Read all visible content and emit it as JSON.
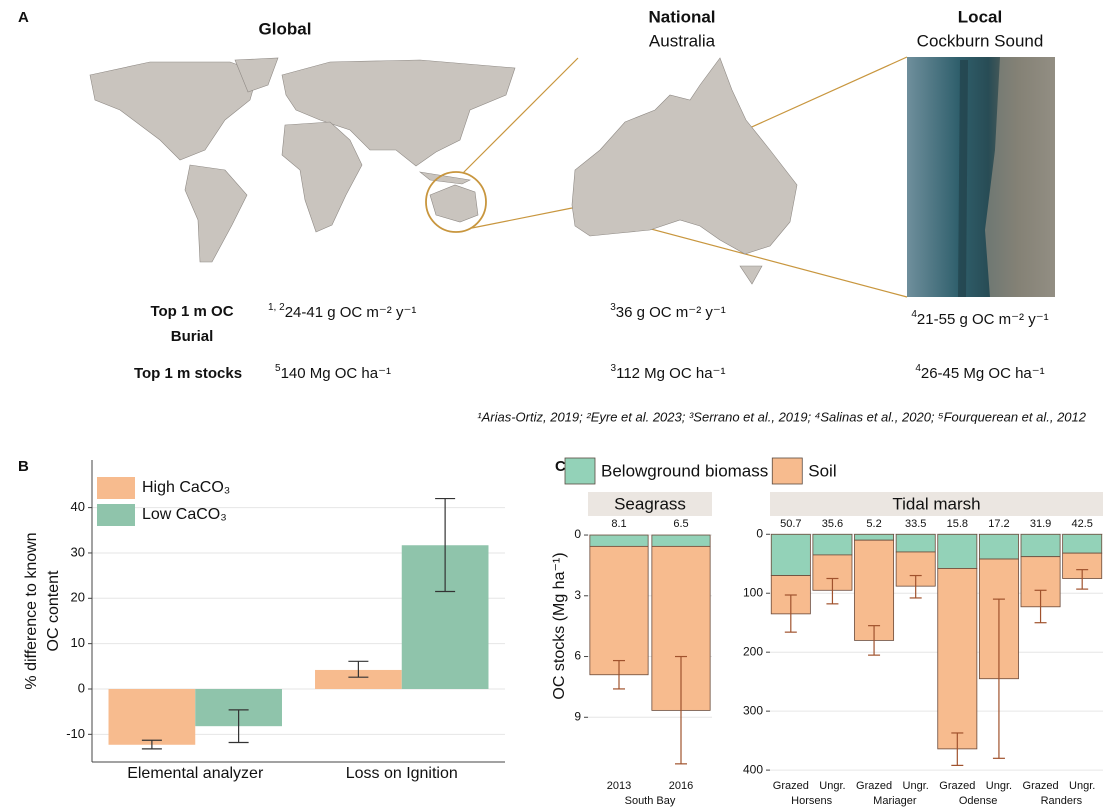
{
  "panel_a": {
    "label": "A",
    "scales": [
      {
        "title": "Global"
      },
      {
        "title": "National",
        "subtitle": "Australia"
      },
      {
        "title": "Local",
        "subtitle": "Cockburn Sound"
      }
    ],
    "rows": [
      {
        "label": [
          "Top 1 m OC",
          "Burial"
        ],
        "cells": [
          {
            "ref": "1, 2",
            "text": "24-41 g OC  m⁻² y⁻¹"
          },
          {
            "ref": "3",
            "text": "36 g OC  m⁻² y⁻¹"
          },
          {
            "ref": "4",
            "text": "21-55 g OC  m⁻² y⁻¹"
          }
        ]
      },
      {
        "label": [
          "Top 1 m stocks"
        ],
        "cells": [
          {
            "ref": "5",
            "text": "140 Mg OC  ha⁻¹"
          },
          {
            "ref": "3",
            "text": "112 Mg OC  ha⁻¹"
          },
          {
            "ref": "4",
            "text": "26-45 Mg OC  ha⁻¹"
          }
        ]
      }
    ],
    "references": "¹Arias-Ortiz, 2019; ²Eyre et al. 2023; ³Serrano et al., 2019; ⁴Salinas et al., 2020; ⁵Fourquerean et al., 2012"
  },
  "chart_data": [
    {
      "type": "grouped_bar",
      "panel_label": "B",
      "ylabel": [
        "% difference to known",
        "OC content"
      ],
      "categories": [
        "Elemental analyzer",
        "Loss on Ignition"
      ],
      "series": [
        {
          "name": "High CaCO₃",
          "color": "#f7bb8e",
          "values": [
            -12.3,
            4.2
          ],
          "errors": [
            [
              -13.2,
              -11.3
            ],
            [
              2.6,
              6.1
            ]
          ]
        },
        {
          "name": "Low CaCO₃",
          "color": "#8fc4ab",
          "values": [
            -8.2,
            31.7
          ],
          "errors": [
            [
              -11.8,
              -4.6
            ],
            [
              21.5,
              42
            ]
          ]
        }
      ],
      "ylim": [
        -16.1,
        50.5
      ],
      "yticks": [
        -10,
        0,
        10,
        20,
        30,
        40
      ],
      "grid": true,
      "legend": "top-left"
    },
    {
      "type": "faceted_stacked_bar",
      "panel_label": "C",
      "ylabel": "OC stocks (Mg ha⁻¹)",
      "legend": [
        {
          "name": "Belowground biomass",
          "color": "#93d2b8"
        },
        {
          "name": "Soil",
          "color": "#f7bb8e"
        }
      ],
      "facets": [
        {
          "title": "Seagrass",
          "categories": [
            "2013",
            "2016"
          ],
          "sites": [
            "South Bay"
          ],
          "annotations": [
            8.1,
            6.5
          ],
          "annotation_color": "#2e6e55",
          "series": [
            {
              "values": [
                0.56,
                0.56
              ]
            },
            {
              "values": [
                6.34,
                8.1
              ]
            }
          ],
          "errors": [
            [
              6.2,
              7.6
            ],
            [
              6.0,
              11.3
            ]
          ],
          "ylim": [
            -0.94,
            11.9
          ],
          "yticks": [
            0,
            3,
            6,
            9
          ]
        },
        {
          "title": "Tidal marsh",
          "categories": [
            "Grazed",
            "Ungr.",
            "Grazed",
            "Ungr.",
            "Grazed",
            "Ungr.",
            "Grazed",
            "Ungr."
          ],
          "sites": [
            "Horsens",
            "Mariager",
            "Odense",
            "Randers"
          ],
          "annotations": [
            50.7,
            35.6,
            5.2,
            33.5,
            15.8,
            17.2,
            31.9,
            42.5
          ],
          "annotation_color": "#111111",
          "series": [
            {
              "values": [
                70,
                35,
                10,
                30,
                58,
                42,
                38,
                32
              ]
            },
            {
              "values": [
                65,
                60,
                170,
                58,
                306,
                203,
                85,
                43
              ]
            }
          ],
          "errors": [
            [
              103,
              166
            ],
            [
              75,
              118
            ],
            [
              155,
              205
            ],
            [
              70,
              108
            ],
            [
              337,
              392
            ],
            [
              110,
              380
            ],
            [
              95,
              150
            ],
            [
              60,
              93
            ]
          ],
          "ylim": [
            -31,
            410
          ],
          "yticks": [
            0,
            100,
            200,
            300,
            400
          ]
        }
      ]
    }
  ]
}
